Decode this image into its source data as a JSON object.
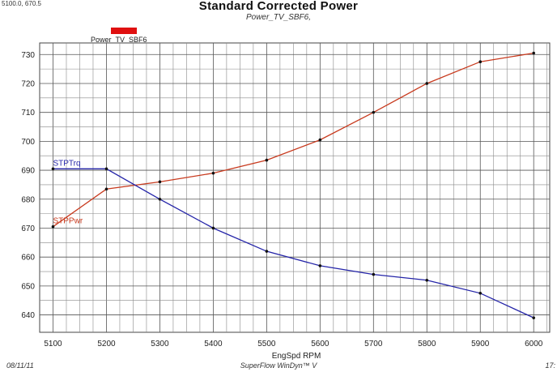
{
  "header": {
    "coordinate_readout": "5100.0, 670.5",
    "title": "Standard Corrected Power",
    "subtitle": "Power_TV_SBF6,"
  },
  "legend": {
    "label": "Power_TV_SBF6",
    "color": "#e01010"
  },
  "footer": {
    "date": "08/11/11",
    "app": "SuperFlow WinDyn™ V",
    "right": "17:"
  },
  "chart_data": {
    "type": "line",
    "title": "Standard Corrected Power",
    "subtitle": "Power_TV_SBF6,",
    "xlabel": "EngSpd  RPM",
    "ylabel": "",
    "xlim": [
      5075,
      6030
    ],
    "ylim": [
      634,
      734
    ],
    "x_ticks": [
      5100,
      5200,
      5300,
      5400,
      5500,
      5600,
      5700,
      5800,
      5900,
      6000
    ],
    "y_ticks": [
      640,
      650,
      660,
      670,
      680,
      690,
      700,
      710,
      720,
      730
    ],
    "grid": true,
    "series": [
      {
        "name": "STPPwr",
        "color": "#c83a1e",
        "x": [
          5100,
          5200,
          5300,
          5400,
          5500,
          5600,
          5700,
          5800,
          5900,
          6000
        ],
        "y": [
          670.5,
          683.5,
          686,
          689,
          693.5,
          700.5,
          710,
          720,
          727.5,
          730.5
        ]
      },
      {
        "name": "STPTrq",
        "color": "#2424a8",
        "x": [
          5100,
          5200,
          5300,
          5400,
          5500,
          5600,
          5700,
          5800,
          5900,
          6000
        ],
        "y": [
          690.5,
          690.5,
          680,
          670,
          662,
          657,
          654,
          652,
          647.5,
          639
        ]
      }
    ]
  }
}
